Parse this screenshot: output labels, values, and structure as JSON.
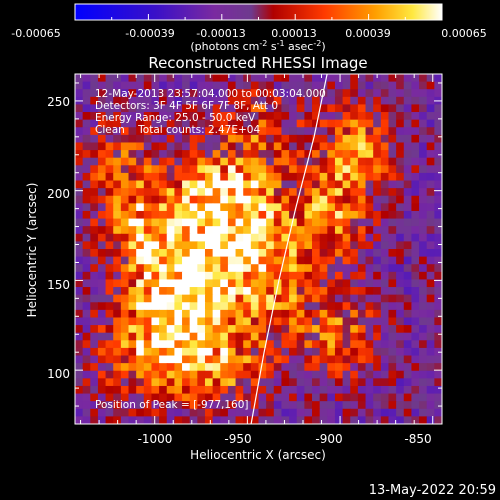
{
  "colorbar": {
    "tick_labels": [
      "-0.00065",
      "-0.00039",
      "-0.00013",
      "0.00013",
      "0.00039",
      "0.00065"
    ],
    "unit_label": "(photons cm",
    "unit_sup1": "-2",
    "unit_mid": " s",
    "unit_sup2": "-1",
    "unit_end": " asec",
    "unit_sup3": "-2",
    "unit_close": ")"
  },
  "footer": {
    "timestamp": "13-May-2022 20:59"
  },
  "chart_data": {
    "type": "heatmap",
    "title": "Reconstructed RHESSI Image",
    "xlabel": "Heliocentric X (arcsec)",
    "ylabel": "Heliocentric Y (arcsec)",
    "xlim": [
      -1043,
      -845
    ],
    "ylim": [
      70,
      265
    ],
    "x_ticks": [
      -1000,
      -950,
      -900,
      -850
    ],
    "x_tick_labels": [
      "-1000",
      "-950",
      "-900",
      "-850"
    ],
    "y_ticks": [
      100,
      150,
      200,
      250
    ],
    "y_tick_labels": [
      "100",
      "150",
      "200",
      "250"
    ],
    "value_range": [
      -0.00065,
      0.00065
    ],
    "colormap": "red-temperature",
    "annotations": [
      "12-May-2013 23:57:04.000 to 00:03:04.000",
      "Detectors: 3F 4F 5F 6F 7F 8F, Att 0",
      "Energy Range: 25.0 - 50.0 keV",
      "Clean    Total counts: 2.47E+04"
    ],
    "peak_label": "Position of Peak = [-977,160]",
    "peak_position": [
      -977,
      160
    ],
    "limb": [
      [
        -948,
        70
      ],
      [
        -941,
        110
      ],
      [
        -933,
        150
      ],
      [
        -924,
        190
      ],
      [
        -914,
        230
      ],
      [
        -907,
        265
      ]
    ],
    "emission_blobs": [
      {
        "x": -975,
        "y": 165,
        "sx": 22,
        "sy": 30,
        "a": 1.0
      },
      {
        "x": -958,
        "y": 195,
        "sx": 18,
        "sy": 16,
        "a": 0.75
      },
      {
        "x": -990,
        "y": 135,
        "sx": 18,
        "sy": 20,
        "a": 0.7
      },
      {
        "x": -935,
        "y": 150,
        "sx": 16,
        "sy": 26,
        "a": 0.6
      },
      {
        "x": -905,
        "y": 190,
        "sx": 14,
        "sy": 22,
        "a": 0.65
      },
      {
        "x": -888,
        "y": 225,
        "sx": 14,
        "sy": 16,
        "a": 0.6
      },
      {
        "x": -1005,
        "y": 105,
        "sx": 20,
        "sy": 16,
        "a": 0.55
      },
      {
        "x": -965,
        "y": 100,
        "sx": 18,
        "sy": 14,
        "a": 0.5
      },
      {
        "x": -900,
        "y": 120,
        "sx": 14,
        "sy": 16,
        "a": 0.55
      },
      {
        "x": -1020,
        "y": 215,
        "sx": 14,
        "sy": 16,
        "a": 0.45
      },
      {
        "x": -1010,
        "y": 180,
        "sx": 14,
        "sy": 16,
        "a": 0.5
      },
      {
        "x": -945,
        "y": 235,
        "sx": 16,
        "sy": 14,
        "a": 0.45
      }
    ]
  }
}
